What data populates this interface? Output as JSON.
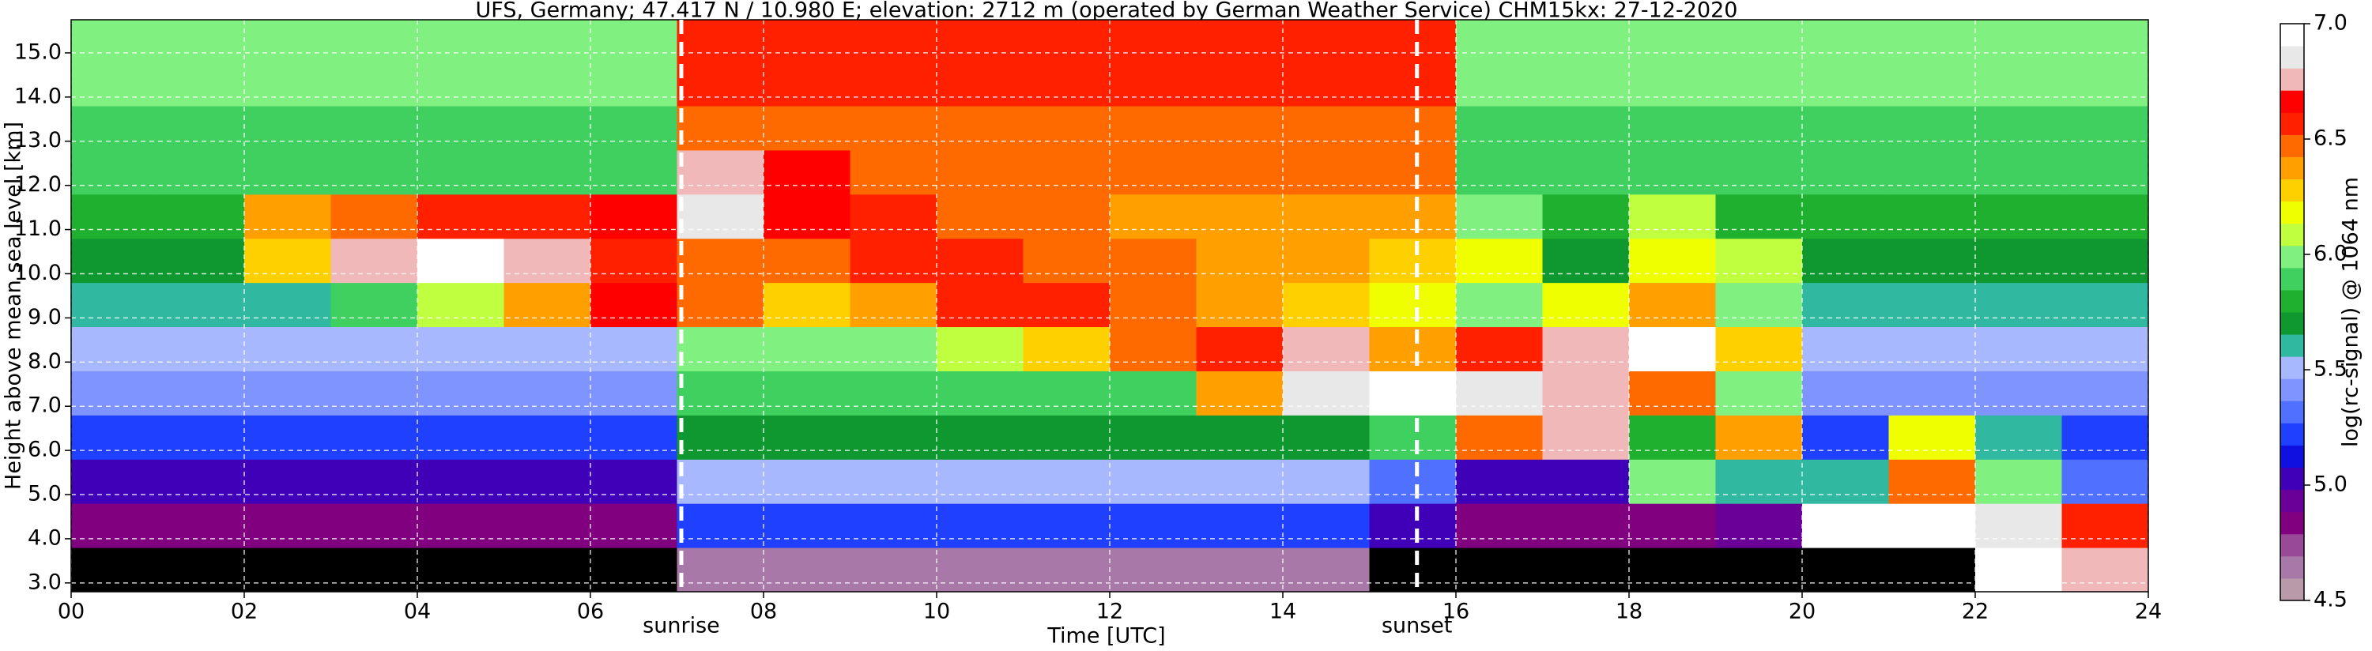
{
  "chart_data": {
    "type": "heatmap",
    "title": "UFS, Germany; 47.417 N / 10.980 E; elevation: 2712 m  (operated by German Weather Service)    CHM15kx: 27-12-2020",
    "x_label": "Time [UTC]",
    "y_label": "Height above mean sea level [km]",
    "colorbar_label": "log(rc-signal) @ 1064 nm",
    "xlim": [
      0,
      24
    ],
    "ylim": [
      2.8,
      15.75
    ],
    "clim": [
      4.5,
      7.0
    ],
    "xticks": [
      {
        "value": 0,
        "label": "00"
      },
      {
        "value": 2,
        "label": "02"
      },
      {
        "value": 4,
        "label": "04"
      },
      {
        "value": 6,
        "label": "06"
      },
      {
        "value": 8,
        "label": "08"
      },
      {
        "value": 10,
        "label": "10"
      },
      {
        "value": 12,
        "label": "12"
      },
      {
        "value": 14,
        "label": "14"
      },
      {
        "value": 16,
        "label": "16"
      },
      {
        "value": 18,
        "label": "18"
      },
      {
        "value": 20,
        "label": "20"
      },
      {
        "value": 22,
        "label": "22"
      },
      {
        "value": 24,
        "label": "24"
      }
    ],
    "yticks": [
      {
        "value": 3,
        "label": "3.0"
      },
      {
        "value": 4,
        "label": "4.0"
      },
      {
        "value": 5,
        "label": "5.0"
      },
      {
        "value": 6,
        "label": "6.0"
      },
      {
        "value": 7,
        "label": "7.0"
      },
      {
        "value": 8,
        "label": "8.0"
      },
      {
        "value": 9,
        "label": "9.0"
      },
      {
        "value": 10,
        "label": "10.0"
      },
      {
        "value": 11,
        "label": "11.0"
      },
      {
        "value": 12,
        "label": "12.0"
      },
      {
        "value": 13,
        "label": "13.0"
      },
      {
        "value": 14,
        "label": "14.0"
      },
      {
        "value": 15,
        "label": "15.0"
      }
    ],
    "cticks": [
      4.5,
      5.0,
      5.5,
      6.0,
      6.5,
      7.0
    ],
    "ctick_labels": [
      "4.5",
      "5.0",
      "5.5",
      "6.0",
      "6.5",
      "7.0"
    ],
    "grid": true,
    "under_color": "#000000",
    "colormap": [
      "#b89aa8",
      "#a878a8",
      "#984a98",
      "#800080",
      "#6a0098",
      "#4000b8",
      "#1010e0",
      "#2040ff",
      "#5070ff",
      "#8094ff",
      "#a8b8ff",
      "#30b8a0",
      "#109830",
      "#20b030",
      "#40d060",
      "#80f080",
      "#c0ff40",
      "#f0ff00",
      "#ffd000",
      "#ffa000",
      "#ff6a00",
      "#ff2000",
      "#ff0000",
      "#f0b8b8",
      "#e8e8e8",
      "#ffffff"
    ],
    "annotations": [
      {
        "x": 7.05,
        "label": "sunrise"
      },
      {
        "x": 15.55,
        "label": "sunset"
      }
    ],
    "x": [
      0.5,
      1.5,
      2.5,
      3.5,
      4.5,
      5.5,
      6.5,
      7.5,
      8.5,
      9.5,
      10.5,
      11.5,
      12.5,
      13.5,
      14.5,
      15.5,
      16.5,
      17.5,
      18.5,
      19.5,
      20.5,
      21.5,
      22.5,
      23.5
    ],
    "y": [
      3.3,
      4.3,
      5.3,
      6.3,
      7.3,
      8.3,
      9.3,
      10.3,
      11.3,
      12.3,
      13.3,
      14.3,
      15.3
    ],
    "z": [
      [
        4.4,
        4.4,
        4.4,
        4.4,
        4.4,
        4.4,
        4.4,
        4.6,
        4.6,
        4.6,
        4.6,
        4.6,
        4.6,
        4.6,
        4.6,
        4.4,
        4.4,
        4.4,
        4.4,
        4.4,
        4.3,
        4.3,
        7.0,
        6.8
      ],
      [
        4.8,
        4.8,
        4.8,
        4.8,
        4.8,
        4.8,
        4.8,
        5.2,
        5.2,
        5.2,
        5.2,
        5.2,
        5.2,
        5.2,
        5.2,
        5.0,
        4.8,
        4.8,
        4.8,
        4.9,
        7.0,
        7.0,
        6.9,
        6.6
      ],
      [
        5.0,
        5.0,
        5.0,
        5.0,
        5.0,
        5.0,
        5.0,
        5.5,
        5.5,
        5.5,
        5.5,
        5.5,
        5.5,
        5.5,
        5.5,
        5.3,
        5.0,
        5.0,
        6.0,
        5.6,
        5.6,
        6.5,
        6.0,
        5.3
      ],
      [
        5.2,
        5.2,
        5.2,
        5.2,
        5.2,
        5.2,
        5.2,
        5.7,
        5.7,
        5.7,
        5.7,
        5.7,
        5.7,
        5.7,
        5.7,
        5.9,
        6.5,
        6.8,
        5.8,
        6.4,
        5.2,
        6.2,
        5.6,
        5.2
      ],
      [
        5.4,
        5.4,
        5.4,
        5.4,
        5.4,
        5.4,
        5.4,
        5.9,
        5.9,
        5.9,
        5.9,
        5.9,
        5.9,
        6.4,
        6.9,
        7.0,
        6.9,
        6.8,
        6.5,
        6.0,
        5.4,
        5.4,
        5.4,
        5.4
      ],
      [
        5.5,
        5.5,
        5.5,
        5.5,
        5.5,
        5.5,
        5.5,
        6.0,
        6.0,
        6.0,
        6.1,
        6.3,
        6.5,
        6.6,
        6.8,
        6.4,
        6.6,
        6.8,
        7.0,
        6.3,
        5.5,
        5.5,
        5.5,
        5.5
      ],
      [
        5.6,
        5.6,
        5.6,
        5.9,
        6.1,
        6.4,
        6.7,
        6.5,
        6.3,
        6.4,
        6.6,
        6.6,
        6.5,
        6.4,
        6.3,
        6.2,
        6.0,
        6.2,
        6.4,
        6.0,
        5.6,
        5.6,
        5.6,
        5.6
      ],
      [
        5.7,
        5.7,
        6.3,
        6.8,
        7.0,
        6.8,
        6.6,
        6.5,
        6.5,
        6.6,
        6.6,
        6.5,
        6.5,
        6.4,
        6.4,
        6.3,
        6.2,
        5.7,
        6.2,
        6.1,
        5.7,
        5.7,
        5.7,
        5.7
      ],
      [
        5.8,
        5.8,
        6.4,
        6.5,
        6.6,
        6.6,
        6.7,
        6.9,
        6.7,
        6.6,
        6.5,
        6.45,
        6.4,
        6.4,
        6.4,
        6.4,
        6.0,
        5.8,
        6.1,
        5.8,
        5.8,
        5.8,
        5.8,
        5.8
      ],
      [
        5.85,
        5.85,
        5.85,
        5.85,
        5.85,
        5.85,
        5.85,
        6.8,
        6.7,
        6.5,
        6.45,
        6.45,
        6.45,
        6.45,
        6.45,
        6.45,
        5.85,
        5.85,
        5.85,
        5.85,
        5.85,
        5.85,
        5.85,
        5.85
      ],
      [
        5.9,
        5.9,
        5.9,
        5.9,
        5.9,
        5.9,
        5.9,
        6.5,
        6.5,
        6.5,
        6.5,
        6.5,
        6.5,
        6.5,
        6.5,
        6.5,
        5.9,
        5.9,
        5.9,
        5.9,
        5.9,
        5.9,
        5.9,
        5.9
      ],
      [
        5.95,
        5.95,
        5.95,
        5.95,
        5.95,
        5.95,
        5.95,
        6.55,
        6.55,
        6.55,
        6.55,
        6.55,
        6.55,
        6.55,
        6.55,
        6.55,
        5.95,
        5.95,
        5.95,
        5.95,
        5.95,
        5.95,
        5.95,
        5.95
      ],
      [
        6.0,
        6.0,
        6.0,
        6.0,
        6.0,
        6.0,
        6.0,
        6.6,
        6.6,
        6.6,
        6.6,
        6.6,
        6.6,
        6.6,
        6.6,
        6.6,
        6.0,
        6.0,
        6.0,
        6.0,
        6.0,
        6.0,
        6.0,
        6.0
      ]
    ]
  }
}
